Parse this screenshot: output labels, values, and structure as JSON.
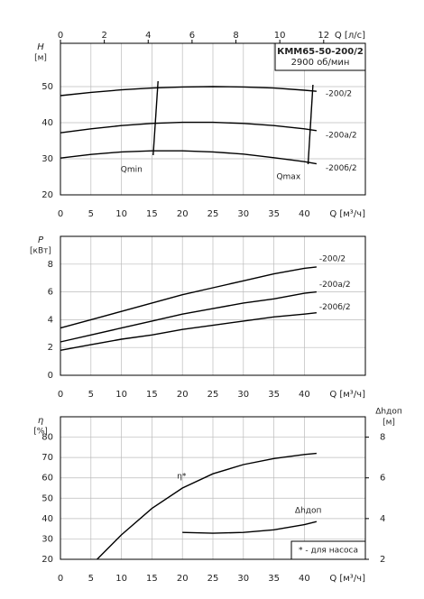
{
  "chart_data": [
    {
      "type": "line",
      "title": "КММ65-50-200/2",
      "subtitle": "2900 об/мин",
      "xlabel": "Q [м³/ч]",
      "x2label": "Q [л/с]",
      "ylabel": "H",
      "yunit": "[м]",
      "xlim": [
        0,
        50
      ],
      "xticks": [
        0,
        5,
        10,
        15,
        20,
        25,
        30,
        35,
        40
      ],
      "x2lim": [
        0,
        13.9
      ],
      "x2ticks": [
        0,
        2,
        4,
        6,
        8,
        10,
        12
      ],
      "ylim": [
        20,
        62
      ],
      "yticks": [
        20,
        30,
        40,
        50
      ],
      "grid": true,
      "series": [
        {
          "name": "-200/2",
          "color": "#000000",
          "x": [
            0,
            5,
            10,
            15,
            20,
            25,
            30,
            35,
            40,
            42
          ],
          "values": [
            47.5,
            48.4,
            49.1,
            49.6,
            49.9,
            50.0,
            49.9,
            49.6,
            49.0,
            48.7
          ]
        },
        {
          "name": "-200а/2",
          "color": "#000000",
          "x": [
            0,
            5,
            10,
            15,
            20,
            25,
            30,
            35,
            40,
            42
          ],
          "values": [
            37.2,
            38.3,
            39.2,
            39.8,
            40.1,
            40.1,
            39.8,
            39.2,
            38.3,
            37.8
          ]
        },
        {
          "name": "-200б/2",
          "color": "#000000",
          "x": [
            0,
            5,
            10,
            15,
            20,
            25,
            30,
            35,
            40,
            42
          ],
          "values": [
            30.2,
            31.2,
            31.9,
            32.2,
            32.2,
            31.9,
            31.3,
            30.3,
            29.2,
            28.6
          ]
        },
        {
          "name": "Qmin",
          "color": "#000000",
          "x": [
            15.2,
            16
          ],
          "values": [
            31,
            51.5
          ]
        },
        {
          "name": "Qmax",
          "color": "#000000",
          "x": [
            40.6,
            41.4
          ],
          "values": [
            28.5,
            50.5
          ]
        }
      ]
    },
    {
      "type": "line",
      "xlabel": "Q [м³/ч]",
      "ylabel": "P",
      "yunit": "[кВт]",
      "xlim": [
        0,
        50
      ],
      "xticks": [
        0,
        5,
        10,
        15,
        20,
        25,
        30,
        35,
        40
      ],
      "ylim": [
        0,
        10
      ],
      "yticks": [
        0,
        2,
        4,
        6,
        8
      ],
      "grid": true,
      "series": [
        {
          "name": "-200/2",
          "color": "#000000",
          "x": [
            0,
            5,
            10,
            15,
            20,
            25,
            30,
            35,
            40,
            42
          ],
          "values": [
            3.4,
            4.0,
            4.6,
            5.2,
            5.8,
            6.3,
            6.8,
            7.3,
            7.7,
            7.8
          ]
        },
        {
          "name": "-200а/2",
          "color": "#000000",
          "x": [
            0,
            5,
            10,
            15,
            20,
            25,
            30,
            35,
            40,
            42
          ],
          "values": [
            2.4,
            2.9,
            3.4,
            3.9,
            4.4,
            4.8,
            5.2,
            5.5,
            5.9,
            6.0
          ]
        },
        {
          "name": "-200б/2",
          "color": "#000000",
          "x": [
            0,
            5,
            10,
            15,
            20,
            25,
            30,
            35,
            40,
            42
          ],
          "values": [
            1.8,
            2.2,
            2.6,
            2.9,
            3.3,
            3.6,
            3.9,
            4.2,
            4.4,
            4.5
          ]
        }
      ]
    },
    {
      "type": "line",
      "xlabel": "Q [м³/ч]",
      "ylabel": "η",
      "yunit": "[%]",
      "y2label": "Δhдоп",
      "y2unit": "[м]",
      "note": "* - для насоса",
      "xlim": [
        0,
        50
      ],
      "xticks": [
        0,
        5,
        10,
        15,
        20,
        25,
        30,
        35,
        40
      ],
      "ylim": [
        20,
        90
      ],
      "yticks": [
        20,
        30,
        40,
        50,
        60,
        70,
        80
      ],
      "y2lim": [
        2,
        9
      ],
      "y2ticks": [
        2,
        4,
        6,
        8
      ],
      "grid": true,
      "series": [
        {
          "name": "η*",
          "color": "#000000",
          "x": [
            6,
            10,
            15,
            20,
            25,
            30,
            35,
            40,
            42
          ],
          "values": [
            20,
            32,
            45,
            55,
            62,
            66.5,
            69.5,
            71.5,
            72
          ]
        },
        {
          "name": "Δhдоп",
          "color": "#000000",
          "axis": "y2",
          "x": [
            20,
            25,
            30,
            35,
            40,
            42
          ],
          "values": [
            3.32,
            3.28,
            3.32,
            3.45,
            3.7,
            3.85
          ]
        }
      ]
    }
  ]
}
